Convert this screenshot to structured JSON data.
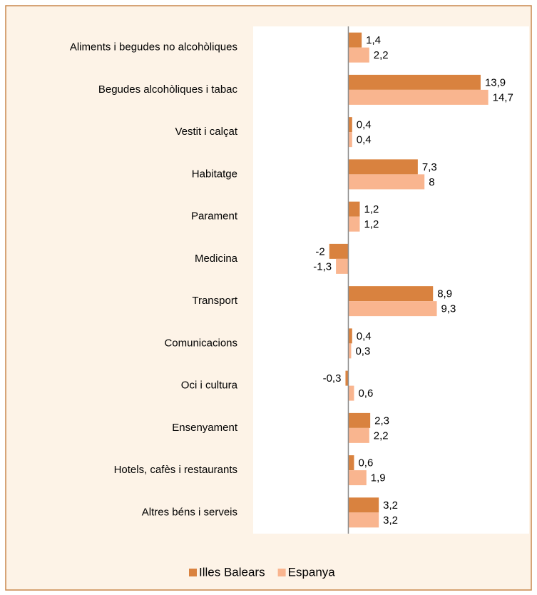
{
  "chart_data": {
    "type": "bar",
    "orientation": "horizontal",
    "categories": [
      "Aliments i begudes no alcohòliques",
      "Begudes alcohòliques i tabac",
      "Vestit i calçat",
      "Habitatge",
      "Parament",
      "Medicina",
      "Transport",
      "Comunicacions",
      "Oci i cultura",
      "Ensenyament",
      "Hotels, cafès i restaurants",
      "Altres béns i serveis"
    ],
    "series": [
      {
        "name": "Illes Balears",
        "color": "#d9823f",
        "values": [
          1.4,
          13.9,
          0.4,
          7.3,
          1.2,
          -2,
          8.9,
          0.4,
          -0.3,
          2.3,
          0.6,
          3.2
        ],
        "value_labels": [
          "1,4",
          "13,9",
          "0,4",
          "7,3",
          "1,2",
          "-2",
          "8,9",
          "0,4",
          "-0,3",
          "2,3",
          "0,6",
          "3,2"
        ]
      },
      {
        "name": "Espanya",
        "color": "#f9b58f",
        "values": [
          2.2,
          14.7,
          0.4,
          8,
          1.2,
          -1.3,
          9.3,
          0.3,
          0.6,
          2.2,
          1.9,
          3.2
        ],
        "value_labels": [
          "2,2",
          "14,7",
          "0,4",
          "8",
          "1,2",
          "-1,3",
          "9,3",
          "0,3",
          "0,6",
          "2,2",
          "1,9",
          "3,2"
        ]
      }
    ],
    "xlim": [
      -10,
      19
    ],
    "legend": "bottom"
  }
}
